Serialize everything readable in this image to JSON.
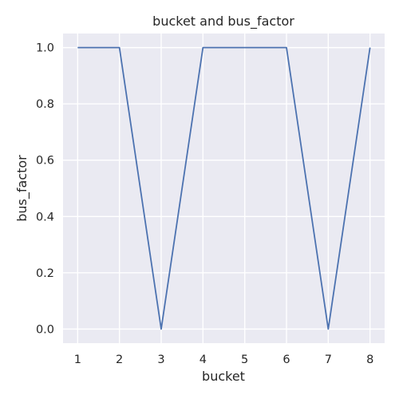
{
  "chart_data": {
    "type": "line",
    "title": "bucket and bus_factor",
    "xlabel": "bucket",
    "ylabel": "bus_factor",
    "x": [
      1,
      2,
      3,
      4,
      5,
      6,
      7,
      8
    ],
    "series": [
      {
        "values": [
          1.0,
          1.0,
          0.0,
          1.0,
          1.0,
          1.0,
          0.0,
          1.0
        ]
      }
    ],
    "xlim": [
      0.65,
      8.35
    ],
    "ylim": [
      -0.05,
      1.05
    ],
    "xticks": [
      1,
      2,
      3,
      4,
      5,
      6,
      7,
      8
    ],
    "yticks": [
      "0.0",
      "0.2",
      "0.4",
      "0.6",
      "0.8",
      "1.0"
    ],
    "grid": true,
    "line_color": "#4c72b0",
    "background_color": "#eaeaf2",
    "grid_color": "#ffffff"
  }
}
